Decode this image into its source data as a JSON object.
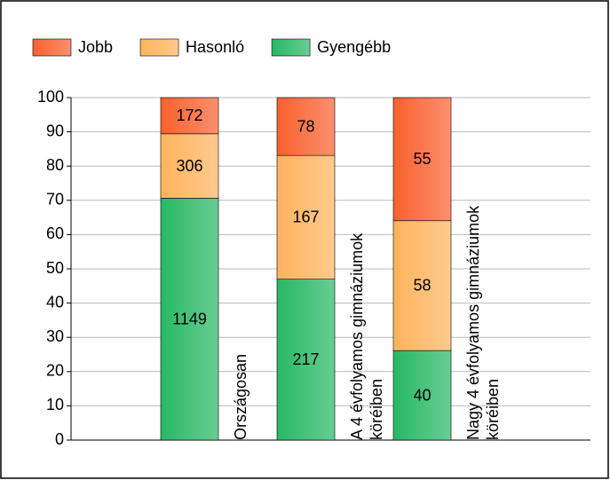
{
  "chart_data": {
    "type": "bar",
    "stacking": "percent",
    "categories": [
      "Országosan",
      "A 4 évfolyamos gimnáziumok köréiben",
      "Nagy 4 évfolyamos gimnáziumok köréiben"
    ],
    "series": [
      {
        "name": "Gyengébb",
        "color": "#27b864",
        "values": [
          1149,
          217,
          40
        ]
      },
      {
        "name": "Hasonló",
        "color": "#ffb35c",
        "values": [
          306,
          167,
          58
        ]
      },
      {
        "name": "Jobb",
        "color": "#f9602e",
        "values": [
          172,
          78,
          55
        ]
      }
    ],
    "legend_order": [
      2,
      1,
      0
    ],
    "ylim": [
      0,
      100
    ],
    "yticks": [
      0,
      10,
      20,
      30,
      40,
      50,
      60,
      70,
      80,
      90,
      100
    ],
    "grid": true
  }
}
